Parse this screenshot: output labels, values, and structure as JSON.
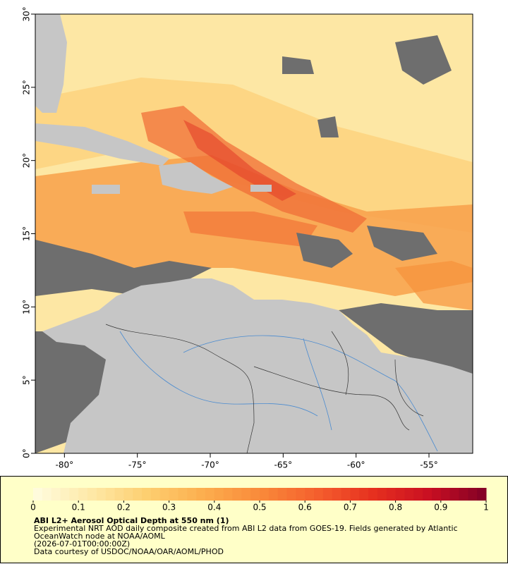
{
  "map": {
    "lon_lim": [
      -82,
      -52
    ],
    "lat_lim": [
      0,
      30
    ],
    "lon_ticks": [
      {
        "value": -80,
        "label": "-80°"
      },
      {
        "value": -75,
        "label": "-75°"
      },
      {
        "value": -70,
        "label": "-70°"
      },
      {
        "value": -65,
        "label": "-65°"
      },
      {
        "value": -60,
        "label": "-60°"
      },
      {
        "value": -55,
        "label": "-55°"
      }
    ],
    "lat_ticks": [
      {
        "value": 0,
        "label": "0°"
      },
      {
        "value": 5,
        "label": "5°"
      },
      {
        "value": 10,
        "label": "10°"
      },
      {
        "value": 15,
        "label": "15°"
      },
      {
        "value": 20,
        "label": "20°"
      },
      {
        "value": 25,
        "label": "25°"
      },
      {
        "value": 30,
        "label": "30°"
      }
    ]
  },
  "colorbar": {
    "lim": [
      0,
      1
    ],
    "ticks": [
      0,
      0.1,
      0.2,
      0.3,
      0.4,
      0.5,
      0.6,
      0.7,
      0.8,
      0.9,
      1
    ],
    "colors": [
      "#fffde0",
      "#fee9a8",
      "#fdcf70",
      "#fcae4e",
      "#f98a3a",
      "#f5602e",
      "#e6301f",
      "#c90f22",
      "#800026"
    ],
    "steps": 50
  },
  "caption": {
    "title": "ABI L2+ Aerosol Optical Depth at 550 nm (1)",
    "lines": [
      "Experimental NRT AOD daily composite created from ABI L2 data from GOES-19. Fields generated by Atlantic",
      "OceanWatch node at NOAA/AOML",
      "(2026-07-01T00:00:00Z)",
      "Data courtesy of USDOC/NOAA/OAR/AOML/PHOD"
    ]
  }
}
